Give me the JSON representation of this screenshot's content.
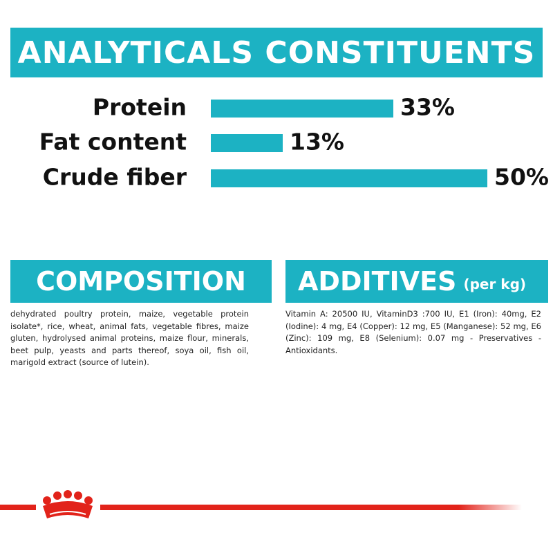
{
  "chart_data": {
    "type": "bar",
    "orientation": "horizontal",
    "title": "ANALYTICALS CONSTITUENTS",
    "categories": [
      "Protein",
      "Fat content",
      "Crude fiber"
    ],
    "values": [
      33,
      13,
      50
    ],
    "value_labels": [
      "33%",
      "13%",
      "50%"
    ],
    "color": "#1cb2c3"
  },
  "composition": {
    "title": "COMPOSITION",
    "text": "dehydrated poultry protein, maize, vegetable protein isolate*, rice, wheat, animal fats, vegetable fibres, maize gluten, hydrolysed animal proteins, maize flour, minerals, beet pulp, yeasts and parts thereof, soya oil, fish oil, marigold extract (source of lutein)."
  },
  "additives": {
    "title": "ADDITIVES",
    "unit": "(per kg)",
    "text": "Vitamin A: 20500 IU, VitaminD3 :700 IU, E1 (Iron): 40mg, E2 (Iodine): 4 mg, E4 (Copper): 12 mg, E5 (Manganese): 52 mg, E6 (Zinc): 109 mg, E8 (Selenium): 0.07 mg - Preservatives - Antioxidants."
  }
}
